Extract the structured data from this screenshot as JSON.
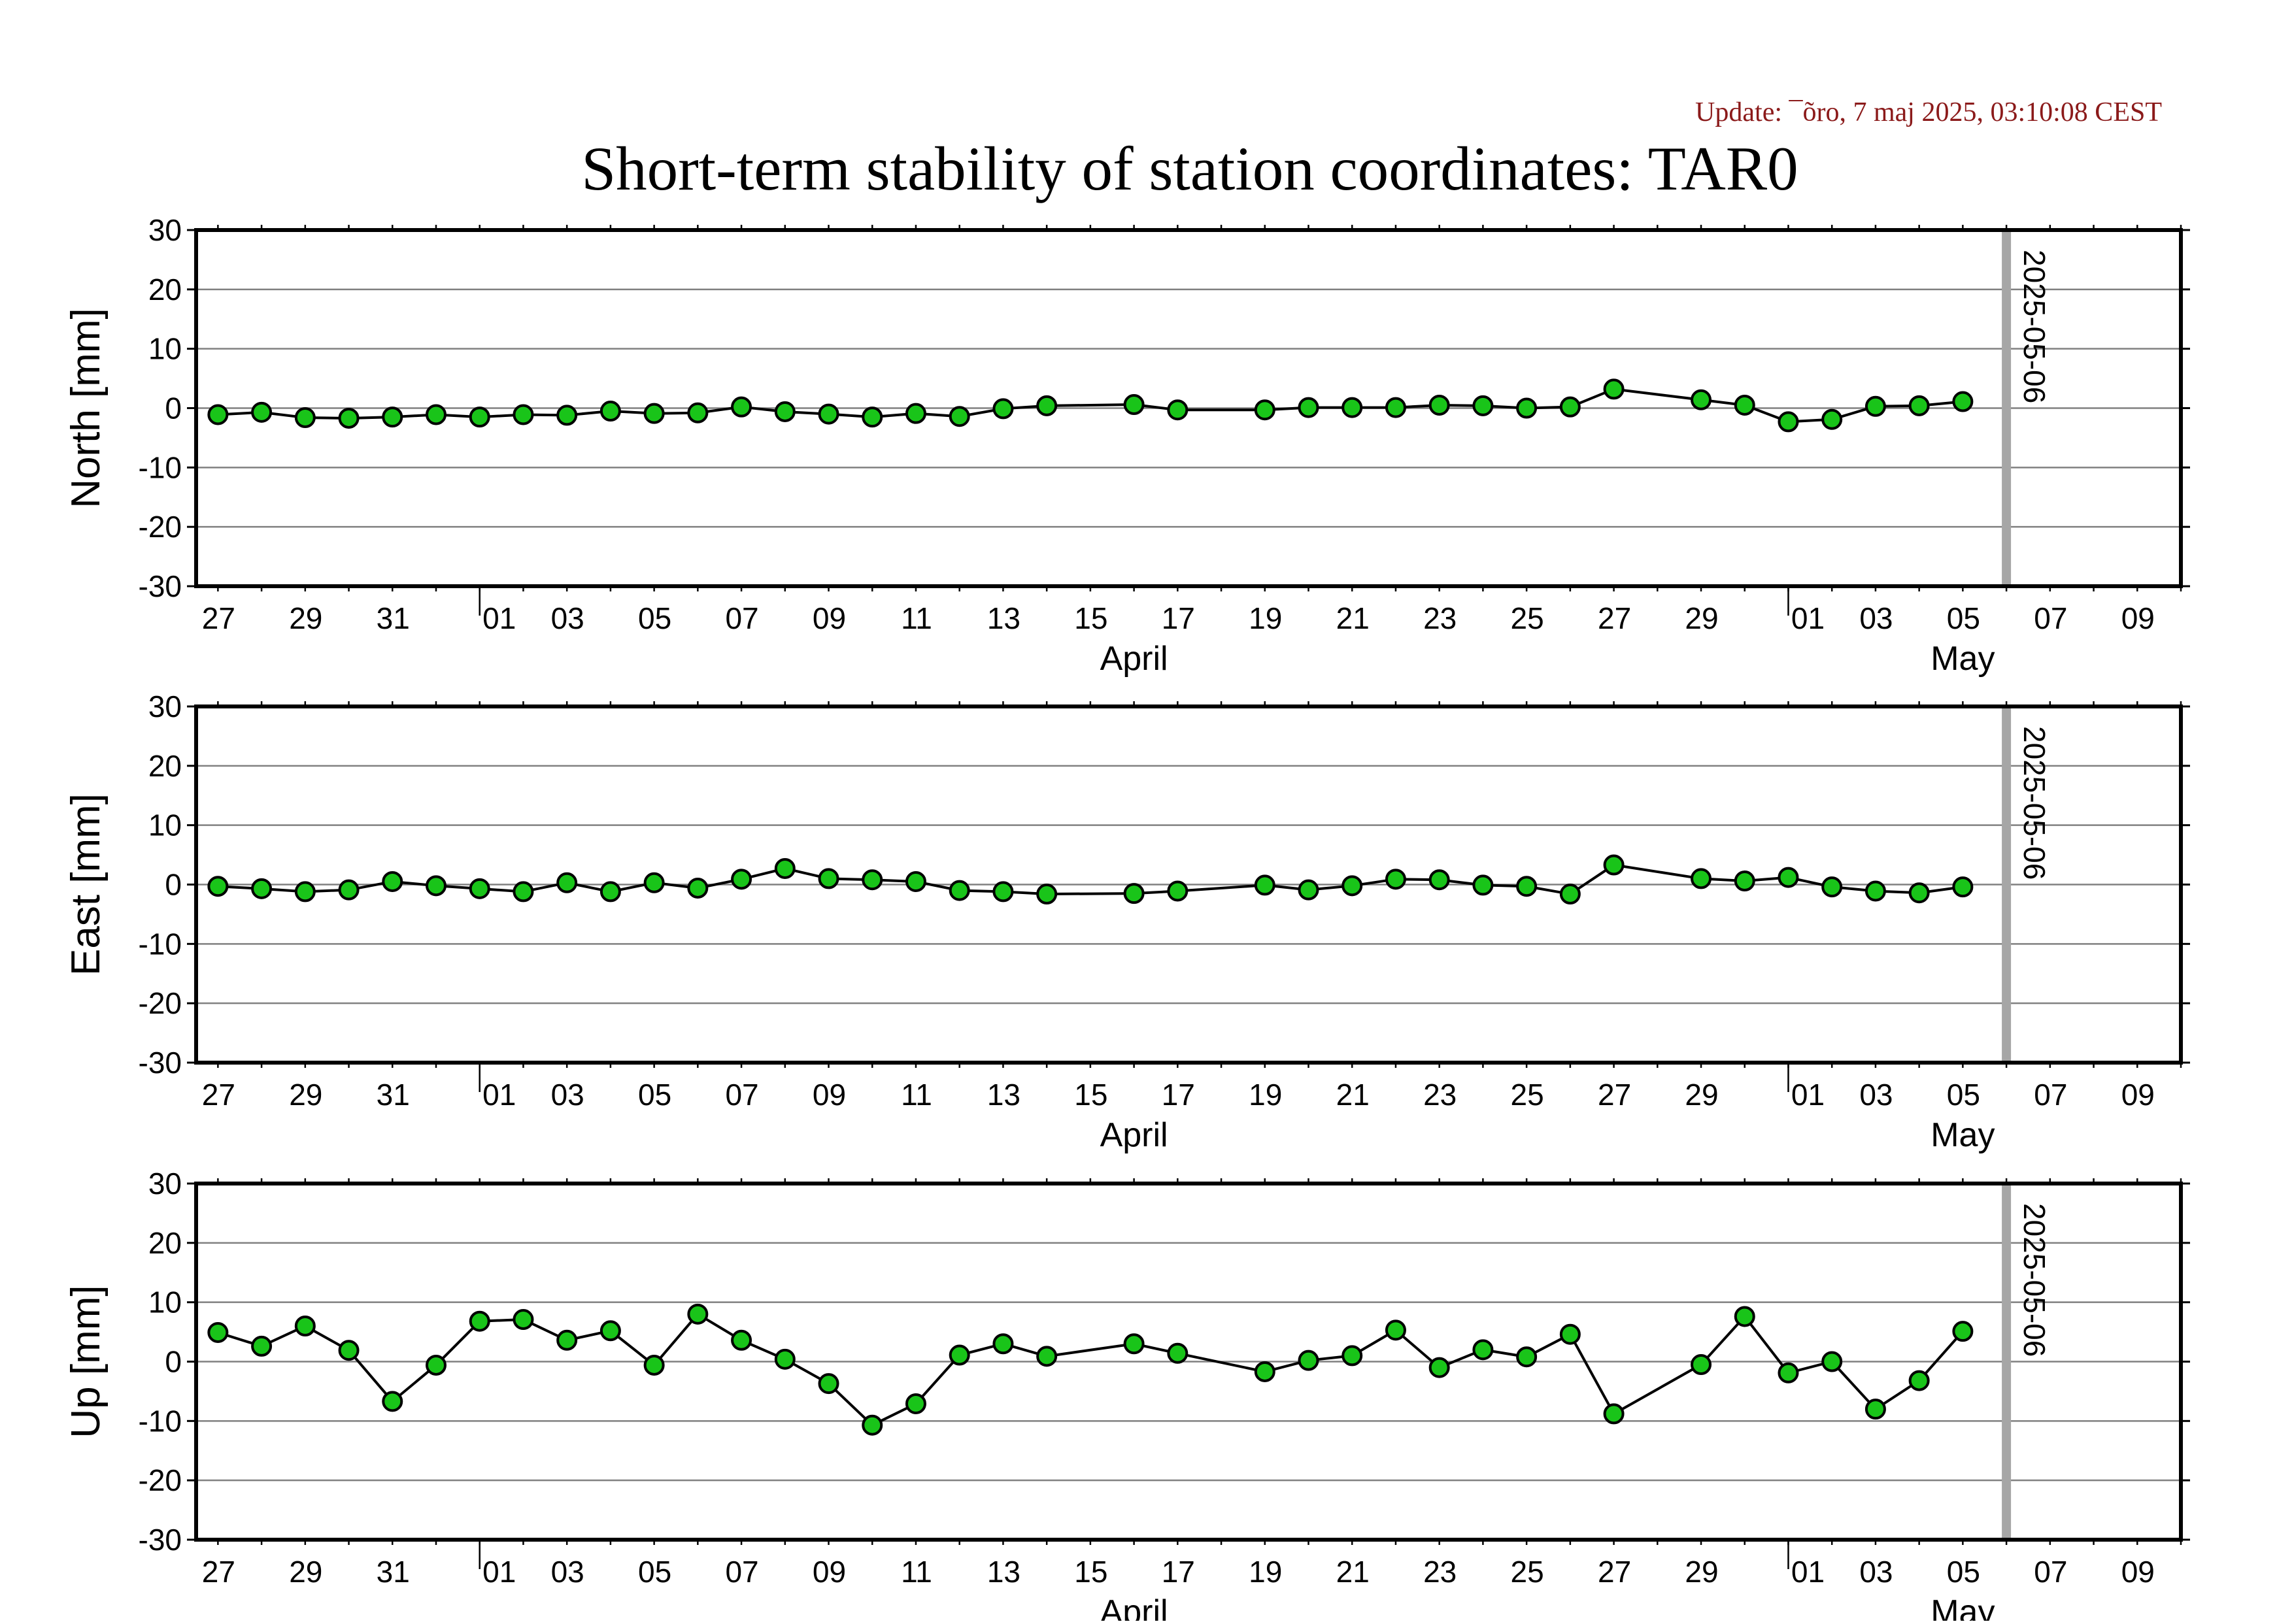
{
  "update_text": "Update: ¯õro, 7 maj 2025, 03:10:08 CEST",
  "title": "Short-term stability of station coordinates: TAR0",
  "colors": {
    "point_fill": "#19c419",
    "line": "#000000",
    "grid": "#808080",
    "marker_line": "#a6a6a6",
    "update_text": "#8b1a1a"
  },
  "chart_data": [
    {
      "type": "line",
      "ylabel": "North [mm]",
      "ylim": [
        -30,
        30
      ],
      "yticks": [
        30,
        20,
        10,
        0,
        -10,
        -20,
        -30
      ],
      "xlim": [
        "2025-03-25T12:00",
        "2025-05-10T00:00"
      ],
      "x_tick_labels": [
        "27",
        "29",
        "31",
        "01",
        "03",
        "05",
        "07",
        "09",
        "11",
        "13",
        "15",
        "17",
        "19",
        "21",
        "23",
        "25",
        "27",
        "29",
        "01",
        "03",
        "05",
        "07",
        "09"
      ],
      "month_labels": [
        "April",
        "May"
      ],
      "marker_line": {
        "date": "2025-05-06",
        "label": "2025-05-06"
      },
      "grid": true,
      "series": [
        {
          "x": [
            "2025-03-26",
            "2025-03-27",
            "2025-03-28",
            "2025-03-29",
            "2025-03-30",
            "2025-03-31",
            "2025-04-01",
            "2025-04-02",
            "2025-04-03",
            "2025-04-04",
            "2025-04-05",
            "2025-04-06",
            "2025-04-07",
            "2025-04-08",
            "2025-04-09",
            "2025-04-10",
            "2025-04-11",
            "2025-04-12",
            "2025-04-13",
            "2025-04-14",
            "2025-04-16",
            "2025-04-17",
            "2025-04-19",
            "2025-04-20",
            "2025-04-21",
            "2025-04-22",
            "2025-04-23",
            "2025-04-24",
            "2025-04-25",
            "2025-04-26",
            "2025-04-27",
            "2025-04-29",
            "2025-04-30",
            "2025-05-01",
            "2025-05-02",
            "2025-05-03",
            "2025-05-04",
            "2025-05-05"
          ],
          "y": [
            -1.1,
            -0.7,
            -1.6,
            -1.7,
            -1.5,
            -1.1,
            -1.5,
            -1.1,
            -1.2,
            -0.5,
            -0.9,
            -0.8,
            0.2,
            -0.6,
            -1.0,
            -1.5,
            -0.9,
            -1.4,
            -0.1,
            0.4,
            0.6,
            -0.3,
            -0.3,
            0.1,
            0.1,
            0.1,
            0.5,
            0.4,
            0.0,
            0.2,
            3.2,
            1.4,
            0.5,
            -2.3,
            -1.9,
            0.3,
            0.4,
            1.1
          ]
        }
      ]
    },
    {
      "type": "line",
      "ylabel": "East [mm]",
      "ylim": [
        -30,
        30
      ],
      "yticks": [
        30,
        20,
        10,
        0,
        -10,
        -20,
        -30
      ],
      "xlim": [
        "2025-03-25T12:00",
        "2025-05-10T00:00"
      ],
      "x_tick_labels": [
        "27",
        "29",
        "31",
        "01",
        "03",
        "05",
        "07",
        "09",
        "11",
        "13",
        "15",
        "17",
        "19",
        "21",
        "23",
        "25",
        "27",
        "29",
        "01",
        "03",
        "05",
        "07",
        "09"
      ],
      "month_labels": [
        "April",
        "May"
      ],
      "marker_line": {
        "date": "2025-05-06",
        "label": "2025-05-06"
      },
      "grid": true,
      "series": [
        {
          "x": [
            "2025-03-26",
            "2025-03-27",
            "2025-03-28",
            "2025-03-29",
            "2025-03-30",
            "2025-03-31",
            "2025-04-01",
            "2025-04-02",
            "2025-04-03",
            "2025-04-04",
            "2025-04-05",
            "2025-04-06",
            "2025-04-07",
            "2025-04-08",
            "2025-04-09",
            "2025-04-10",
            "2025-04-11",
            "2025-04-12",
            "2025-04-13",
            "2025-04-14",
            "2025-04-16",
            "2025-04-17",
            "2025-04-19",
            "2025-04-20",
            "2025-04-21",
            "2025-04-22",
            "2025-04-23",
            "2025-04-24",
            "2025-04-25",
            "2025-04-26",
            "2025-04-27",
            "2025-04-29",
            "2025-04-30",
            "2025-05-01",
            "2025-05-02",
            "2025-05-03",
            "2025-05-04",
            "2025-05-05"
          ],
          "y": [
            -0.3,
            -0.7,
            -1.2,
            -0.9,
            0.5,
            -0.2,
            -0.7,
            -1.2,
            0.3,
            -1.2,
            0.3,
            -0.6,
            0.9,
            2.7,
            1.0,
            0.8,
            0.5,
            -1.0,
            -1.2,
            -1.6,
            -1.5,
            -1.1,
            -0.1,
            -0.9,
            -0.2,
            0.9,
            0.8,
            -0.1,
            -0.3,
            -1.6,
            3.3,
            1.0,
            0.6,
            1.2,
            -0.4,
            -1.1,
            -1.4,
            -0.4
          ]
        }
      ]
    },
    {
      "type": "line",
      "ylabel": "Up [mm]",
      "ylim": [
        -30,
        30
      ],
      "yticks": [
        30,
        20,
        10,
        0,
        -10,
        -20,
        -30
      ],
      "xlim": [
        "2025-03-25T12:00",
        "2025-05-10T00:00"
      ],
      "x_tick_labels": [
        "27",
        "29",
        "31",
        "01",
        "03",
        "05",
        "07",
        "09",
        "11",
        "13",
        "15",
        "17",
        "19",
        "21",
        "23",
        "25",
        "27",
        "29",
        "01",
        "03",
        "05",
        "07",
        "09"
      ],
      "month_labels": [
        "April",
        "May"
      ],
      "marker_line": {
        "date": "2025-05-06",
        "label": "2025-05-06"
      },
      "grid": true,
      "series": [
        {
          "x": [
            "2025-03-26",
            "2025-03-27",
            "2025-03-28",
            "2025-03-29",
            "2025-03-30",
            "2025-03-31",
            "2025-04-01",
            "2025-04-02",
            "2025-04-03",
            "2025-04-04",
            "2025-04-05",
            "2025-04-06",
            "2025-04-07",
            "2025-04-08",
            "2025-04-09",
            "2025-04-10",
            "2025-04-11",
            "2025-04-12",
            "2025-04-13",
            "2025-04-14",
            "2025-04-16",
            "2025-04-17",
            "2025-04-19",
            "2025-04-20",
            "2025-04-21",
            "2025-04-22",
            "2025-04-23",
            "2025-04-24",
            "2025-04-25",
            "2025-04-26",
            "2025-04-27",
            "2025-04-29",
            "2025-04-30",
            "2025-05-01",
            "2025-05-02",
            "2025-05-03",
            "2025-05-04",
            "2025-05-05"
          ],
          "y": [
            4.9,
            2.6,
            6.0,
            1.9,
            -6.7,
            -0.6,
            6.8,
            7.1,
            3.6,
            5.2,
            -0.6,
            8.0,
            3.6,
            0.4,
            -3.7,
            -10.7,
            -7.1,
            1.1,
            3.0,
            0.9,
            3.0,
            1.4,
            -1.7,
            0.2,
            1.0,
            5.3,
            -1.0,
            2.0,
            0.8,
            4.6,
            -8.8,
            -0.5,
            7.6,
            -1.9,
            0.0,
            -8.0,
            -3.2,
            5.1
          ]
        }
      ]
    }
  ]
}
